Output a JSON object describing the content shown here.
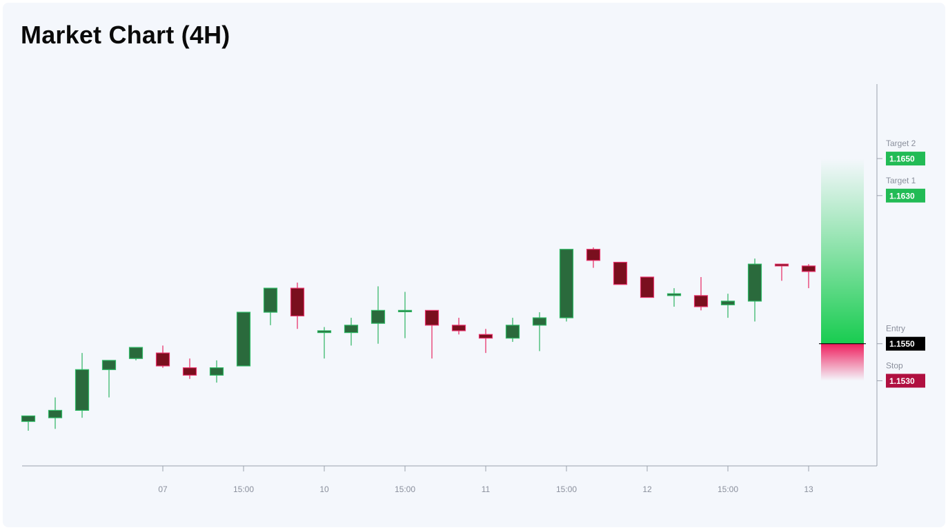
{
  "title": "Market Chart (4H)",
  "colors": {
    "up": "#2a6a3c",
    "up_wick": "#39b86b",
    "down": "#7a0f1e",
    "down_wick": "#e8336b",
    "down_border": "#e8336b",
    "up_border": "#2fb865",
    "target": "#22bb55",
    "entry": "#000000",
    "stop": "#b01040",
    "axis": "#9aa0ad",
    "tick_text": "#8a8f9c"
  },
  "chart_data": {
    "type": "candlestick",
    "title": "Market Chart (4H)",
    "ylim": [
      1.1484,
      1.1688
    ],
    "x_tick_labels": [
      {
        "index": 5,
        "label": "07"
      },
      {
        "index": 8,
        "label": "15:00"
      },
      {
        "index": 11,
        "label": "10"
      },
      {
        "index": 14,
        "label": "15:00"
      },
      {
        "index": 17,
        "label": "11"
      },
      {
        "index": 20,
        "label": "15:00"
      },
      {
        "index": 23,
        "label": "12"
      },
      {
        "index": 26,
        "label": "15:00"
      },
      {
        "index": 29,
        "label": "13"
      }
    ],
    "candles": [
      {
        "o": 1.1508,
        "h": 1.1509,
        "l": 1.1503,
        "c": 1.1511
      },
      {
        "o": 1.151,
        "h": 1.1521,
        "l": 1.1504,
        "c": 1.1514
      },
      {
        "o": 1.1514,
        "h": 1.1545,
        "l": 1.151,
        "c": 1.1536
      },
      {
        "o": 1.1536,
        "h": 1.1541,
        "l": 1.1521,
        "c": 1.1541
      },
      {
        "o": 1.1542,
        "h": 1.1548,
        "l": 1.1541,
        "c": 1.1548
      },
      {
        "o": 1.1545,
        "h": 1.1549,
        "l": 1.1537,
        "c": 1.1538
      },
      {
        "o": 1.1537,
        "h": 1.1542,
        "l": 1.1531,
        "c": 1.1533
      },
      {
        "o": 1.1533,
        "h": 1.1541,
        "l": 1.1529,
        "c": 1.1537
      },
      {
        "o": 1.1538,
        "h": 1.1567,
        "l": 1.1538,
        "c": 1.1567
      },
      {
        "o": 1.1567,
        "h": 1.1578,
        "l": 1.156,
        "c": 1.158
      },
      {
        "o": 1.158,
        "h": 1.1583,
        "l": 1.1558,
        "c": 1.1565
      },
      {
        "o": 1.1556,
        "h": 1.1559,
        "l": 1.1542,
        "c": 1.1557
      },
      {
        "o": 1.1556,
        "h": 1.1564,
        "l": 1.1549,
        "c": 1.156
      },
      {
        "o": 1.1561,
        "h": 1.1581,
        "l": 1.155,
        "c": 1.1568
      },
      {
        "o": 1.1568,
        "h": 1.1578,
        "l": 1.1553,
        "c": 1.1568
      },
      {
        "o": 1.1568,
        "h": 1.1568,
        "l": 1.1542,
        "c": 1.156
      },
      {
        "o": 1.156,
        "h": 1.1564,
        "l": 1.1555,
        "c": 1.1557
      },
      {
        "o": 1.1555,
        "h": 1.1558,
        "l": 1.1545,
        "c": 1.1553
      },
      {
        "o": 1.1553,
        "h": 1.1564,
        "l": 1.1551,
        "c": 1.156
      },
      {
        "o": 1.156,
        "h": 1.1567,
        "l": 1.1546,
        "c": 1.1564
      },
      {
        "o": 1.1564,
        "h": 1.1601,
        "l": 1.1562,
        "c": 1.1601
      },
      {
        "o": 1.1601,
        "h": 1.1602,
        "l": 1.1591,
        "c": 1.1595
      },
      {
        "o": 1.1594,
        "h": 1.1594,
        "l": 1.1582,
        "c": 1.1582
      },
      {
        "o": 1.1586,
        "h": 1.1586,
        "l": 1.1575,
        "c": 1.1575
      },
      {
        "o": 1.1576,
        "h": 1.158,
        "l": 1.157,
        "c": 1.1577
      },
      {
        "o": 1.1576,
        "h": 1.1586,
        "l": 1.1568,
        "c": 1.157
      },
      {
        "o": 1.1571,
        "h": 1.1577,
        "l": 1.1564,
        "c": 1.1573
      },
      {
        "o": 1.1573,
        "h": 1.1596,
        "l": 1.1562,
        "c": 1.1593
      },
      {
        "o": 1.1593,
        "h": 1.1593,
        "l": 1.1584,
        "c": 1.1592
      },
      {
        "o": 1.1592,
        "h": 1.1593,
        "l": 1.158,
        "c": 1.1589
      }
    ],
    "levels": [
      {
        "name": "Target 2",
        "value": "1.1650",
        "price": 1.165,
        "kind": "target"
      },
      {
        "name": "Target 1",
        "value": "1.1630",
        "price": 1.163,
        "kind": "target"
      },
      {
        "name": "Entry",
        "value": "1.1550",
        "price": 1.155,
        "kind": "entry"
      },
      {
        "name": "Stop",
        "value": "1.1530",
        "price": 1.153,
        "kind": "stop"
      }
    ]
  }
}
